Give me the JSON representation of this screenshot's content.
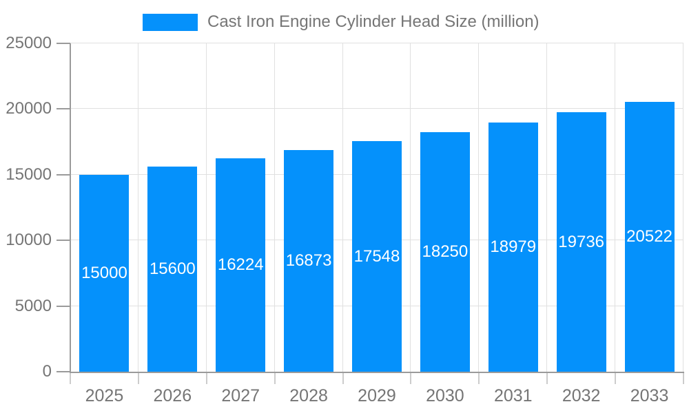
{
  "legend": {
    "label": "Cast Iron Engine Cylinder Head Size (million)"
  },
  "chart_data": {
    "type": "bar",
    "title": "Cast Iron Engine Cylinder Head Size (million)",
    "categories": [
      "2025",
      "2026",
      "2027",
      "2028",
      "2029",
      "2030",
      "2031",
      "2032",
      "2033"
    ],
    "values": [
      15000,
      15600,
      16224,
      16873,
      17548,
      18250,
      18979,
      19736,
      20522
    ],
    "value_labels": [
      "15000",
      "15600",
      "16224",
      "16873",
      "17548",
      "18250",
      "18979",
      "19736",
      "20522"
    ],
    "xlabel": "",
    "ylabel": "",
    "ylim": [
      0,
      25000
    ],
    "yticks": [
      0,
      5000,
      10000,
      15000,
      20000,
      25000
    ],
    "ytick_labels": [
      "0",
      "5000",
      "10000",
      "15000",
      "20000",
      "25000"
    ],
    "grid": true,
    "legend_position": "top-center",
    "value_label_position": "inside-middle",
    "colors": {
      "bar": "#0591fb",
      "grid": "#e0e0e0",
      "axis_line": "#9a9a9a",
      "boundary_tick": "#cccccc",
      "axis_text": "#757575",
      "value_text": "#ffffff",
      "background": "#ffffff"
    }
  }
}
